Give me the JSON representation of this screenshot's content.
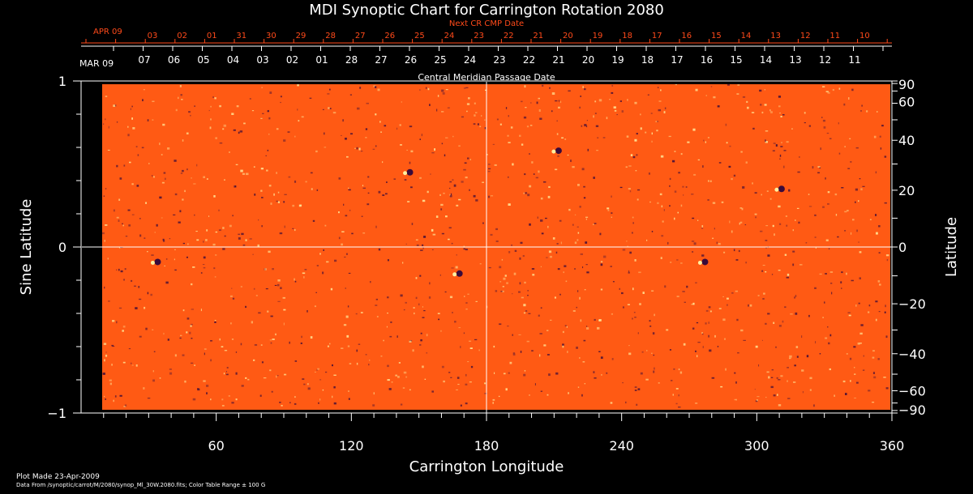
{
  "chart_data": {
    "type": "heatmap",
    "title": "MDI Synoptic Chart for Carrington Rotation 2080",
    "xlabel": "Carrington Longitude",
    "ylabel_left": "Sine Latitude",
    "ylabel_right": "Latitude",
    "xlim": [
      0,
      360
    ],
    "ylim": [
      -1,
      1
    ],
    "x_ticks": [
      60,
      120,
      180,
      240,
      300,
      360
    ],
    "y_ticks_left": [
      1,
      0,
      -1
    ],
    "y_ticks_right": [
      90,
      60,
      40,
      20,
      0,
      -20,
      -40,
      -60,
      -90
    ],
    "grid": "center crosshair at longitude 180 and sine latitude 0",
    "top_axis": {
      "label": "Central Meridian Passage Date",
      "first_label": "MAR 09",
      "dates": [
        "07",
        "06",
        "05",
        "04",
        "03",
        "02",
        "01",
        "28",
        "27",
        "26",
        "25",
        "24",
        "23",
        "22",
        "21",
        "20",
        "19",
        "18",
        "17",
        "16",
        "15",
        "14",
        "13",
        "12",
        "11"
      ]
    },
    "next_cr_axis": {
      "label": "Next CR CMP Date",
      "first_label": "APR 09",
      "dates": [
        "03",
        "02",
        "01",
        "31",
        "30",
        "29",
        "28",
        "27",
        "26",
        "25",
        "24",
        "23",
        "22",
        "21",
        "20",
        "19",
        "18",
        "17",
        "16",
        "15",
        "14",
        "13",
        "12",
        "11",
        "10"
      ]
    },
    "color_range": "± 100 G",
    "colors": {
      "background": "#000000",
      "map_base": "#ff5a14",
      "map_dark": "#3a0a3a",
      "map_light": "#fff0a0",
      "next_cr": "#ff4a1a",
      "text": "#ffffff"
    }
  },
  "footer": {
    "plot_made": "Plot Made 23-Apr-2009",
    "data_from": "Data From /synoptic/carrot/M/2080/synop_Ml_30W.2080.fits; Color Table Range ± 100 G"
  }
}
